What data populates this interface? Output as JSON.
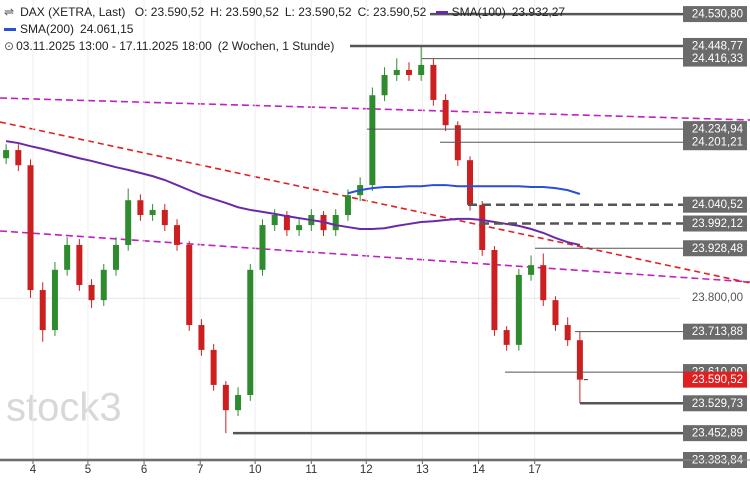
{
  "header": {
    "instrument": "DAX (XETRA, Last)",
    "ohlc": [
      "O: 23.590,52",
      "H: 23.590,52",
      "L: 23.590,52",
      "C: 23.590,52"
    ],
    "range": "03.11.2025 13:00 - 17.11.2025 18:00",
    "period": "(2 Wochen, 1 Stunde)"
  },
  "watermark": "stock3",
  "chart_data": {
    "type": "candlestick",
    "up_color": "#2e8b2e",
    "down_color": "#cc2020",
    "open": [
      24160,
      24181,
      24142,
      23821,
      23718,
      23873,
      23937,
      23834,
      23795,
      23873,
      23937,
      24052,
      24014,
      24027,
      23988,
      23937,
      23731,
      23667,
      23577,
      23512,
      23551,
      23873,
      23988,
      24014,
      23975,
      23988,
      24014,
      23975,
      24014,
      24065,
      24091,
      24322,
      24374,
      24387,
      24374,
      24400,
      24310,
      24245,
      24155,
      24040,
      23924,
      23718,
      23680,
      23860,
      23885,
      23795,
      23731,
      23692
    ],
    "high": [
      24196,
      24196,
      24157,
      23841,
      23893,
      23957,
      23952,
      23849,
      23888,
      23957,
      24082,
      24067,
      24042,
      24042,
      24003,
      23947,
      23746,
      23682,
      23587,
      23571,
      23888,
      24003,
      24029,
      24024,
      24003,
      24029,
      24024,
      24029,
      24080,
      24111,
      24342,
      24394,
      24417,
      24407,
      24448.77,
      24415,
      24325,
      24255,
      24165,
      24050,
      23934,
      23728,
      23875,
      23910,
      23915,
      23805,
      23751,
      23713.88
    ],
    "low": [
      24145,
      24127,
      23801,
      23688,
      23703,
      23858,
      23819,
      23775,
      23780,
      23858,
      23922,
      23999,
      23999,
      23973,
      23922,
      23716,
      23652,
      23562,
      23452.89,
      23497,
      23536,
      23858,
      23973,
      23960,
      23960,
      23973,
      23960,
      23960,
      23999,
      24050,
      24076,
      24307,
      24359,
      24359,
      24359,
      24295,
      24230,
      24140,
      24025,
      23909,
      23703,
      23665,
      23665,
      23845,
      23780,
      23716,
      23677,
      23529.73
    ],
    "close": [
      24181,
      24142,
      23821,
      23718,
      23873,
      23937,
      23834,
      23795,
      23873,
      23937,
      24052,
      24014,
      24027,
      23988,
      23937,
      23731,
      23667,
      23577,
      23512,
      23551,
      23873,
      23988,
      24014,
      23975,
      23988,
      24014,
      23975,
      24014,
      24065,
      24091,
      24322,
      24374,
      24387,
      24374,
      24400,
      24310,
      24245,
      24155,
      24040,
      23924,
      23718,
      23680,
      23860,
      23885,
      23795,
      23731,
      23692,
      23590.52
    ],
    "series": [
      {
        "name": "SMA(100)",
        "color": "#6a2aa8",
        "legend_value": "23.932,27",
        "values": [
          24204,
          24199,
          24191,
          24184,
          24176,
          24168,
          24160,
          24153,
          24145,
          24137,
          24130,
          24122,
          24114,
          24104,
          24091,
          24078,
          24065,
          24055,
          24045,
          24034,
          24027,
          24022,
          24017,
          24011,
          24006,
          24001,
          23996,
          23988,
          23983,
          23978,
          23978,
          23980,
          23986,
          23991,
          23996,
          23998,
          24001,
          24004,
          24004,
          24001,
          23996,
          23991,
          23986,
          23978,
          23968,
          23955,
          23944,
          23937
        ]
      },
      {
        "name": "SMA(200)",
        "color": "#2a4fd6",
        "legend_value": "24.061,15",
        "values": [
          null,
          null,
          null,
          null,
          null,
          null,
          null,
          null,
          null,
          null,
          null,
          null,
          null,
          null,
          null,
          null,
          null,
          null,
          null,
          null,
          null,
          null,
          null,
          null,
          null,
          null,
          null,
          null,
          24070,
          24078,
          24083,
          24086,
          24086,
          24088,
          24088,
          24091,
          24091,
          24088,
          24088,
          24088,
          24088,
          24088,
          24088,
          24086,
          24086,
          24083,
          24078,
          24068
        ]
      }
    ],
    "xlim": [
      -0.5,
      55.2
    ],
    "xticks": [
      {
        "value": 2.2,
        "label": "4"
      },
      {
        "value": 6.7,
        "label": "5"
      },
      {
        "value": 11.3,
        "label": "6"
      },
      {
        "value": 15.9,
        "label": "7"
      },
      {
        "value": 20.4,
        "label": "10"
      },
      {
        "value": 25,
        "label": "11"
      },
      {
        "value": 29.5,
        "label": "12"
      },
      {
        "value": 34.1,
        "label": "13"
      },
      {
        "value": 38.7,
        "label": "14"
      },
      {
        "value": 43.3,
        "label": "17"
      }
    ],
    "ylim": [
      23383.84,
      24567
    ],
    "yticks": [
      {
        "value": 23800,
        "label": "23.800,00"
      }
    ],
    "levels": [
      {
        "value": 24530.8,
        "label": "24.530,80"
      },
      {
        "value": 24448.77,
        "label": "24.448,77"
      },
      {
        "value": 24416.33,
        "label": "24.416,33"
      },
      {
        "value": 24234.94,
        "label": "24.234,94"
      },
      {
        "value": 24201.21,
        "label": "24.201,21"
      },
      {
        "value": 24040.52,
        "label": "24.040,52"
      },
      {
        "value": 23992.12,
        "label": "23.992,12"
      },
      {
        "value": 23928.48,
        "label": "23.928,48"
      },
      {
        "value": 23713.88,
        "label": "23.713,88"
      },
      {
        "value": 23610,
        "label": "23.610,00"
      },
      {
        "value": 23529.73,
        "label": "23.529,73"
      },
      {
        "value": 23452.89,
        "label": "23.452,89"
      },
      {
        "value": 23383.84,
        "label": "23.383,84"
      }
    ],
    "current": {
      "value": 23590.52,
      "label": "23.590,52",
      "color": "#e02020"
    }
  }
}
